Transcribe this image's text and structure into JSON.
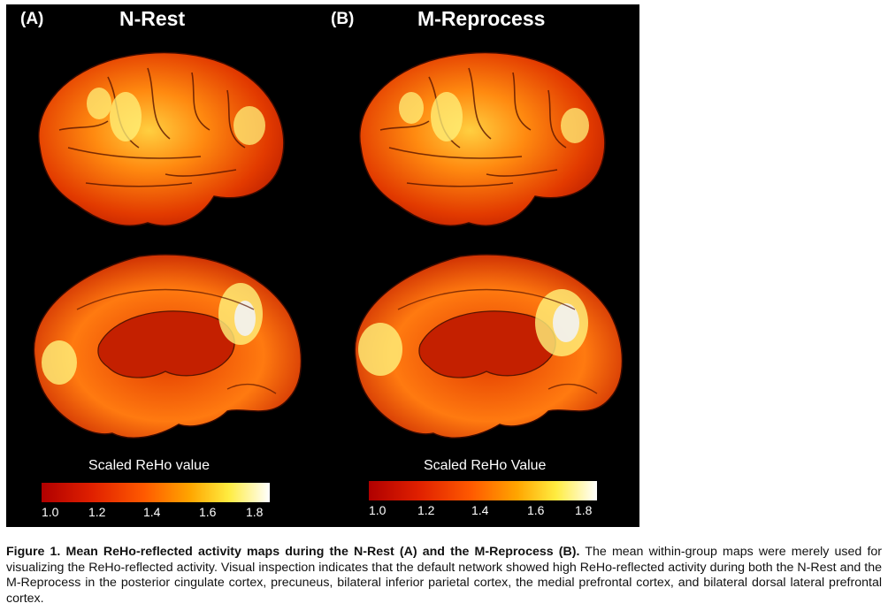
{
  "panels": [
    {
      "letter": "(A)",
      "title": "N-Rest",
      "scale_title": "Scaled ReHo value",
      "ticks": [
        "1.0",
        "1.2",
        "1.4",
        "1.6",
        "1.8"
      ]
    },
    {
      "letter": "(B)",
      "title": "M-Reprocess",
      "scale_title": "Scaled ReHo Value",
      "ticks": [
        "1.0",
        "1.2",
        "1.4",
        "1.6",
        "1.8"
      ]
    }
  ],
  "colorbar_colors": [
    "#b00000",
    "#e02000",
    "#ff5a00",
    "#ffa500",
    "#ffec40",
    "#ffffff"
  ],
  "caption": {
    "bold": "Figure 1. Mean ReHo-reflected activity maps during the N-Rest (A) and the M-Reprocess (B).",
    "text": " The mean within-group maps were merely used for visualizing the ReHo-reflected activity. Visual inspection indicates that the default network showed high ReHo-reflected activity during both the N-Rest and the M-Reprocess in the posterior cingulate cortex, precuneus, bilateral inferior parietal cortex, the medial prefrontal cortex, and bilateral dorsal lateral prefrontal cortex."
  }
}
